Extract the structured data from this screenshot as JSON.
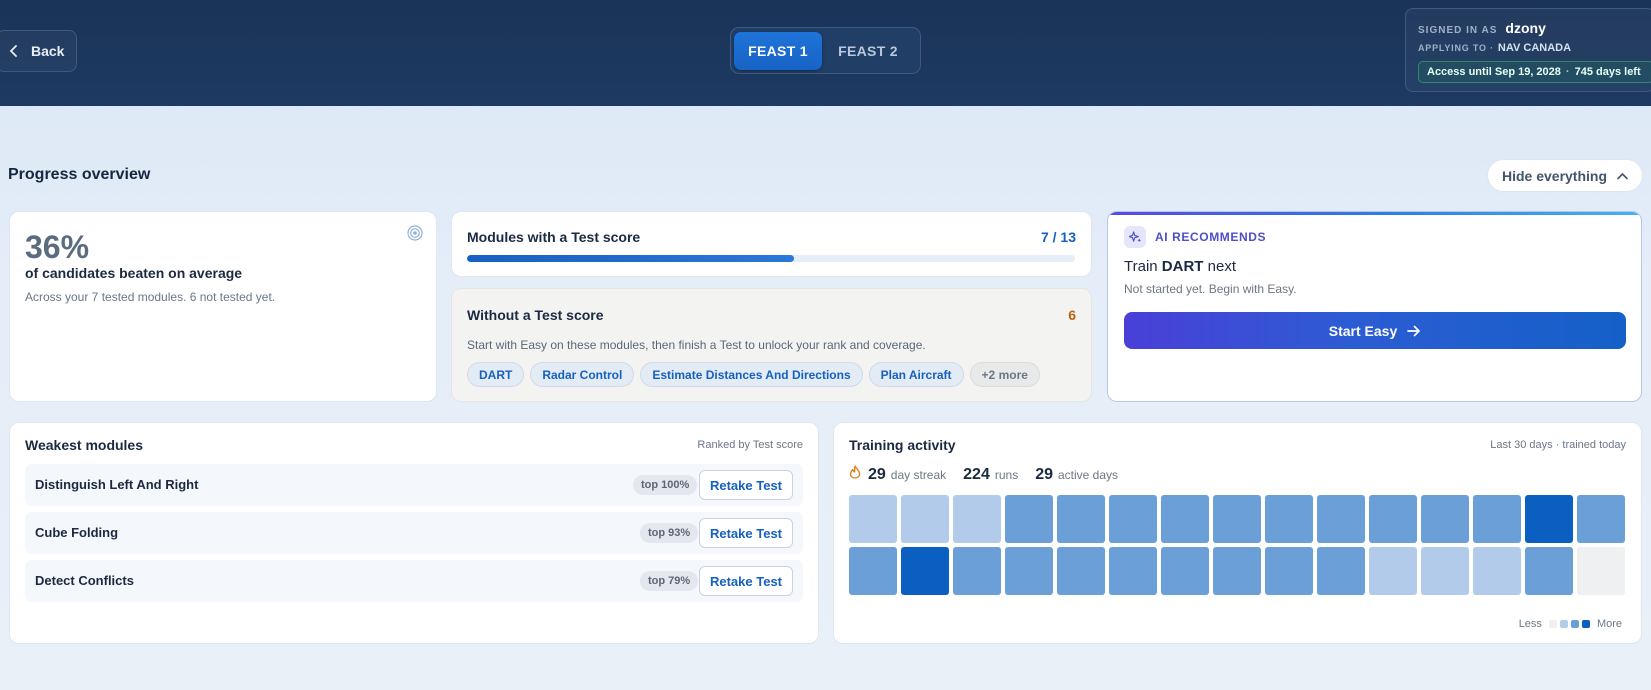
{
  "header": {
    "back_label": "Back",
    "tabs": [
      {
        "label": "FEAST 1",
        "active": true
      },
      {
        "label": "FEAST 2",
        "active": false
      }
    ],
    "signin": {
      "signed_in_as_label": "SIGNED IN AS",
      "username": "dzony",
      "applying_to_label": "APPLYING TO ·",
      "applying_to": "NAV CANADA",
      "access_until": "Access until Sep 19, 2028",
      "separator": "·",
      "days_left": "745 days left"
    }
  },
  "overview": {
    "title": "Progress overview",
    "hide_label": "Hide everything"
  },
  "beaten": {
    "percent": "36%",
    "label": "of candidates beaten on average",
    "sub": "Across your 7 tested modules. 6 not tested yet."
  },
  "modules_scored": {
    "title": "Modules with a Test score",
    "count": "7 / 13",
    "progress": 0.538
  },
  "without_score": {
    "title": "Without a Test score",
    "count": "6",
    "description": "Start with Easy on these modules, then finish a Test to unlock your rank and coverage.",
    "chips": [
      "DART",
      "Radar Control",
      "Estimate Distances And Directions",
      "Plan Aircraft"
    ],
    "more": "+2 more"
  },
  "ai": {
    "label": "AI RECOMMENDS",
    "train_prefix": "Train ",
    "module": "DART",
    "train_suffix": " next",
    "sub": "Not started yet. Begin with Easy.",
    "button": "Start Easy"
  },
  "weakest": {
    "title": "Weakest modules",
    "ranked_by": "Ranked by Test score",
    "rows": [
      {
        "name": "Distinguish Left And Right",
        "badge": "top 100%",
        "button": "Retake Test"
      },
      {
        "name": "Cube Folding",
        "badge": "top 93%",
        "button": "Retake Test"
      },
      {
        "name": "Detect Conflicts",
        "badge": "top 79%",
        "button": "Retake Test"
      }
    ]
  },
  "activity": {
    "title": "Training activity",
    "range": "Last 30 days · trained today",
    "streak": "29",
    "streak_label": "day streak",
    "runs": "224",
    "runs_label": "runs",
    "active_days": "29",
    "active_days_label": "active days",
    "legend_less": "Less",
    "legend_more": "More",
    "levels": [
      1,
      1,
      1,
      2,
      2,
      2,
      2,
      2,
      2,
      2,
      2,
      2,
      2,
      3,
      2,
      2,
      3,
      2,
      2,
      2,
      2,
      2,
      2,
      2,
      2,
      1,
      1,
      1,
      2,
      0
    ],
    "colors": [
      "#eef0f2",
      "#b3cbea",
      "#6a9fd8",
      "#0a5fc0"
    ]
  }
}
